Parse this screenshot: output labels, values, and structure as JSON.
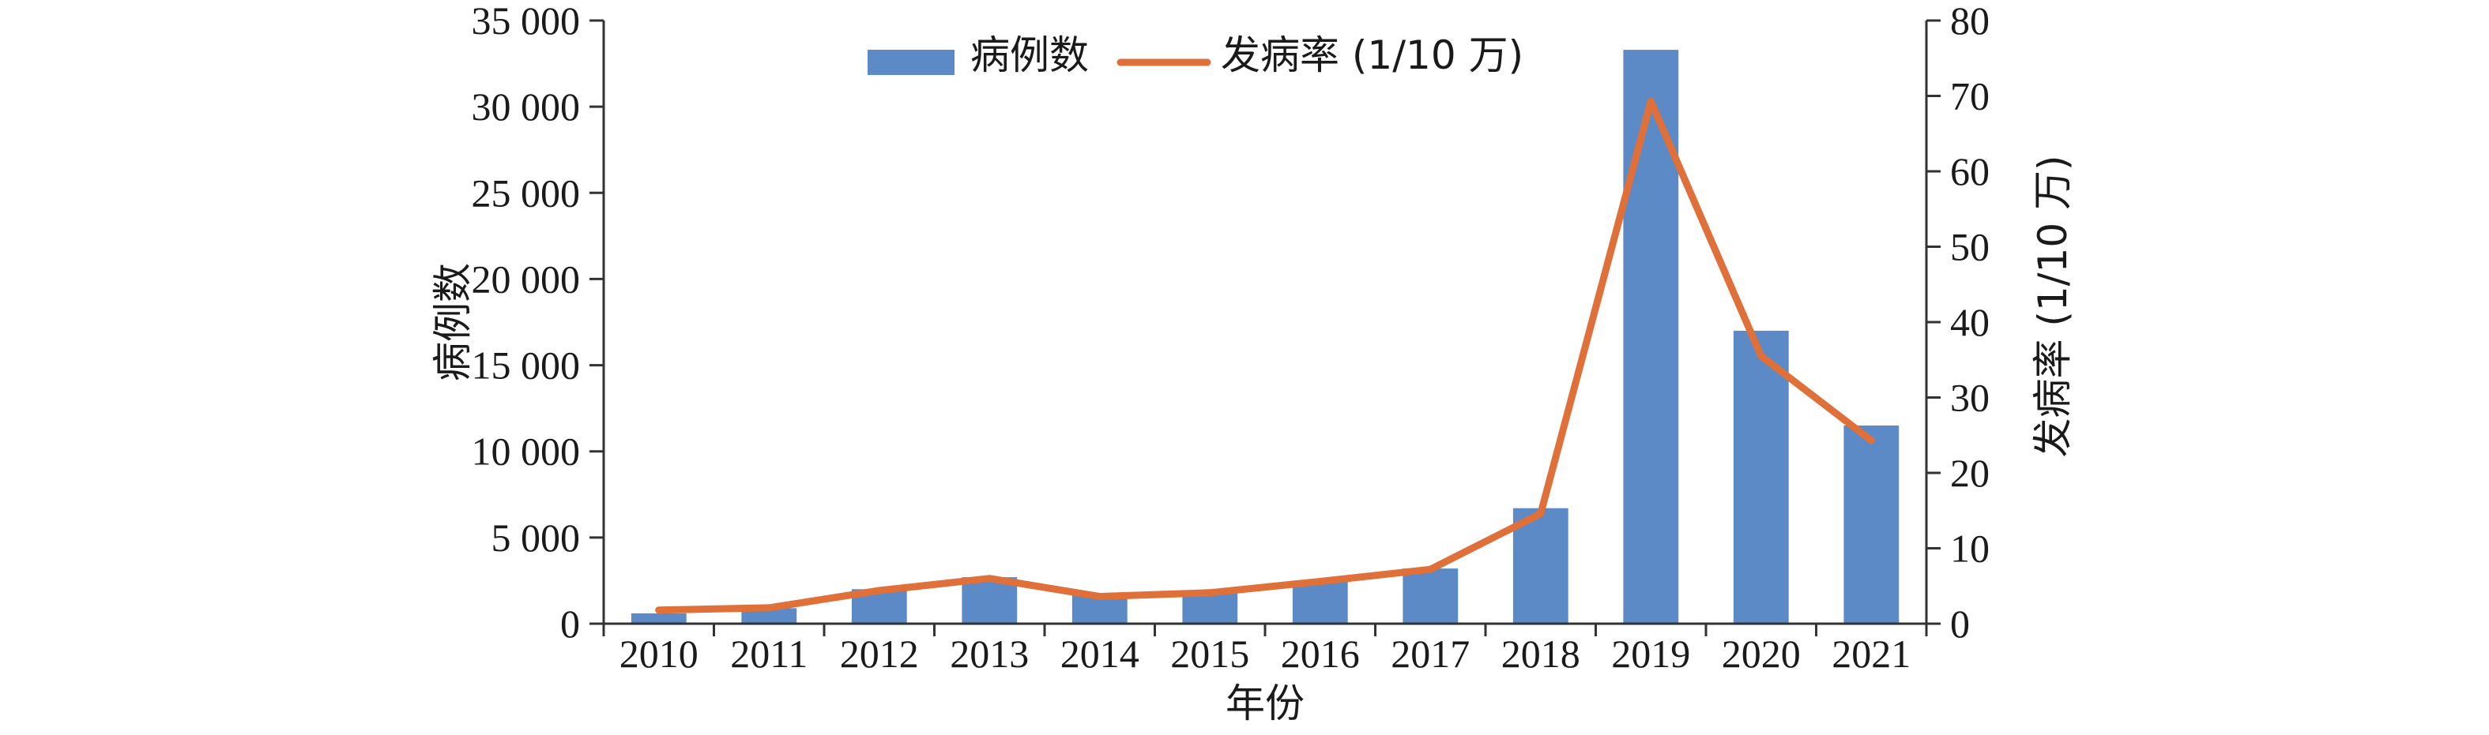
{
  "chart_data": {
    "type": "bar+line",
    "categories": [
      "2010",
      "2011",
      "2012",
      "2013",
      "2014",
      "2015",
      "2016",
      "2017",
      "2018",
      "2019",
      "2020",
      "2021"
    ],
    "series": [
      {
        "name": "病例数",
        "type": "bar",
        "axis": "left",
        "color": "#5b8ac6",
        "values": [
          600,
          900,
          2000,
          2700,
          1700,
          1800,
          2500,
          3200,
          6700,
          33300,
          17000,
          11500
        ]
      },
      {
        "name": "发病率 (1/10 万)",
        "type": "line",
        "axis": "right",
        "color": "#e0703a",
        "values": [
          1.8,
          2.1,
          4.4,
          6.0,
          3.6,
          4.1,
          5.6,
          7.2,
          14.6,
          69.3,
          35.5,
          24.3
        ]
      }
    ],
    "xlabel": "年份",
    "ylabel_left": "病例数",
    "ylabel_right": "发病率 (1/10 万)",
    "ylim_left": [
      0,
      35000
    ],
    "ylim_right": [
      0,
      80
    ],
    "yticks_left": [
      "0",
      "5 000",
      "10 000",
      "15 000",
      "20 000",
      "25 000",
      "30 000",
      "35 000"
    ],
    "yticks_right": [
      "0",
      "10",
      "20",
      "30",
      "40",
      "50",
      "60",
      "70",
      "80"
    ],
    "legend_position": "top-center",
    "grid": false
  }
}
